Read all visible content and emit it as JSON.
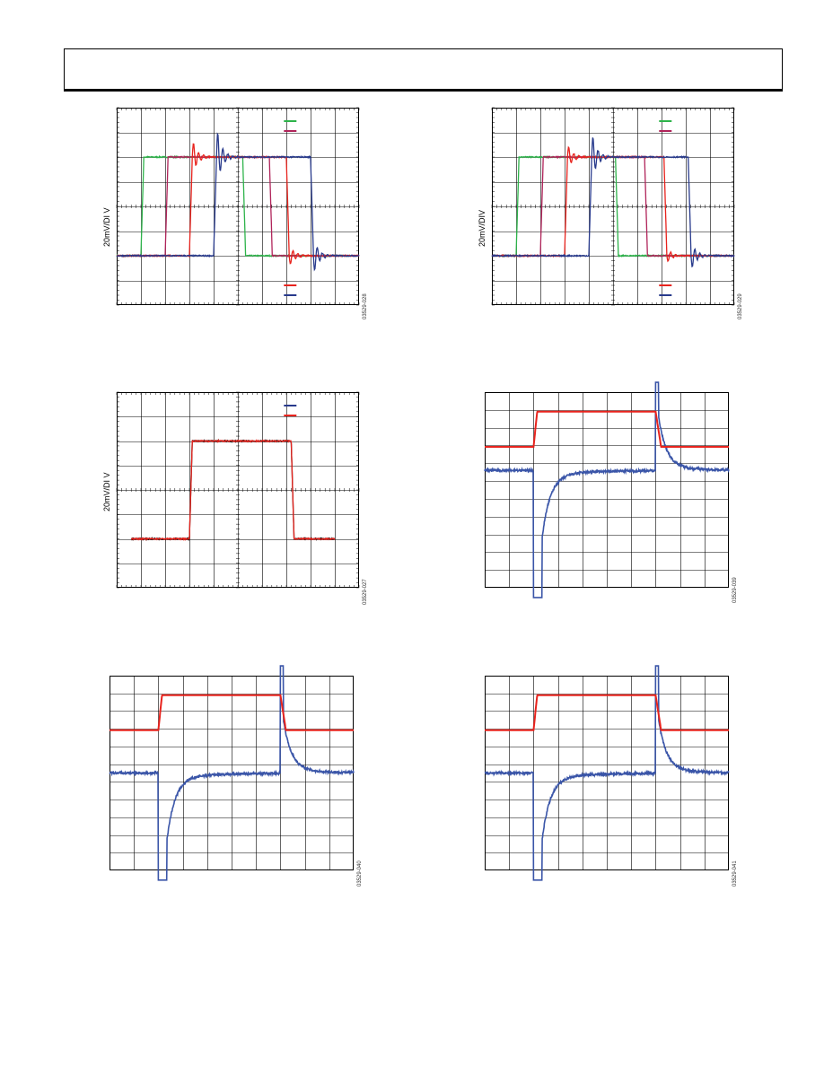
{
  "page": {
    "header_title": ""
  },
  "chart_data": [
    {
      "id": "p1",
      "type": "line",
      "ylabel": "20mV/DI V",
      "figure_id": "03529-028",
      "xlim": [
        0,
        10
      ],
      "ylim": [
        -4,
        4
      ],
      "grid": true,
      "legend_top": [
        {
          "color": "#2db34a"
        },
        {
          "color": "#b0245a"
        }
      ],
      "legend_bottom": [
        {
          "color": "#e8231d"
        },
        {
          "color": "#283a8c"
        }
      ],
      "series": [
        {
          "color": "#2db34a",
          "rise": 1.0,
          "fall": 5.2,
          "ring": 0
        },
        {
          "color": "#b0245a",
          "rise": 2.0,
          "fall": 6.3,
          "ring": 0
        },
        {
          "color": "#e8231d",
          "rise": 3.0,
          "fall": 7.0,
          "ring": 0.7
        },
        {
          "color": "#283a8c",
          "rise": 4.0,
          "fall": 8.0,
          "ring": 1.2
        }
      ],
      "low": -2.0,
      "high": 2.0
    },
    {
      "id": "p2",
      "type": "line",
      "ylabel": "20mV/DIV",
      "figure_id": "03529-029",
      "xlim": [
        0,
        10
      ],
      "ylim": [
        -4,
        4
      ],
      "grid": true,
      "legend_top": [
        {
          "color": "#2db34a"
        },
        {
          "color": "#b0245a"
        }
      ],
      "legend_bottom": [
        {
          "color": "#e8231d"
        },
        {
          "color": "#283a8c"
        }
      ],
      "series": [
        {
          "color": "#2db34a",
          "rise": 1.0,
          "fall": 5.1,
          "ring": 0
        },
        {
          "color": "#b0245a",
          "rise": 2.0,
          "fall": 6.3,
          "ring": 0
        },
        {
          "color": "#e8231d",
          "rise": 3.0,
          "fall": 7.1,
          "ring": 0.5
        },
        {
          "color": "#283a8c",
          "rise": 4.0,
          "fall": 8.1,
          "ring": 1.0
        }
      ],
      "low": -2.0,
      "high": 2.0
    },
    {
      "id": "p3",
      "type": "line",
      "ylabel": "20mV/DI V",
      "figure_id": "03529-027",
      "xlim": [
        0,
        10
      ],
      "ylim": [
        -4,
        4
      ],
      "grid": true,
      "legend_top": [
        {
          "color": "#283a8c"
        },
        {
          "color": "#e8231d"
        }
      ],
      "legend_bottom": [],
      "series": [
        {
          "color": "#000000",
          "rise": 3.0,
          "fall": 7.2,
          "ring": 0,
          "start": 0.6,
          "end": 9.0
        },
        {
          "color": "#e8231d",
          "rise": 3.0,
          "fall": 7.2,
          "ring": 0,
          "start": 0.6,
          "end": 9.0
        }
      ],
      "low": -2.0,
      "high": 2.0
    },
    {
      "id": "p4",
      "type": "line",
      "ylabel": "",
      "figure_id": "03529-039",
      "xlim": [
        0,
        10
      ],
      "ylim": [
        -5,
        5
      ],
      "grid": true,
      "red": {
        "rise": 2.0,
        "fall": 7.0,
        "low": 2.2,
        "high": 4.0
      },
      "blue": {
        "base": 1.0,
        "neg_at": 2.0,
        "pos_at": 7.0
      }
    },
    {
      "id": "p5",
      "type": "line",
      "ylabel": "",
      "figure_id": "03529-040",
      "xlim": [
        0,
        10
      ],
      "ylim": [
        -5,
        5
      ],
      "grid": true,
      "red": {
        "rise": 2.0,
        "fall": 7.0,
        "low": 2.2,
        "high": 4.0
      },
      "blue": {
        "base": 0.0,
        "neg_at": 2.0,
        "pos_at": 7.0
      }
    },
    {
      "id": "p6",
      "type": "line",
      "ylabel": "",
      "figure_id": "03529-041",
      "xlim": [
        0,
        10
      ],
      "ylim": [
        -5,
        5
      ],
      "grid": true,
      "red": {
        "rise": 2.0,
        "fall": 7.0,
        "low": 2.2,
        "high": 4.0
      },
      "blue": {
        "base": 0.0,
        "neg_at": 2.0,
        "pos_at": 7.0
      }
    }
  ]
}
